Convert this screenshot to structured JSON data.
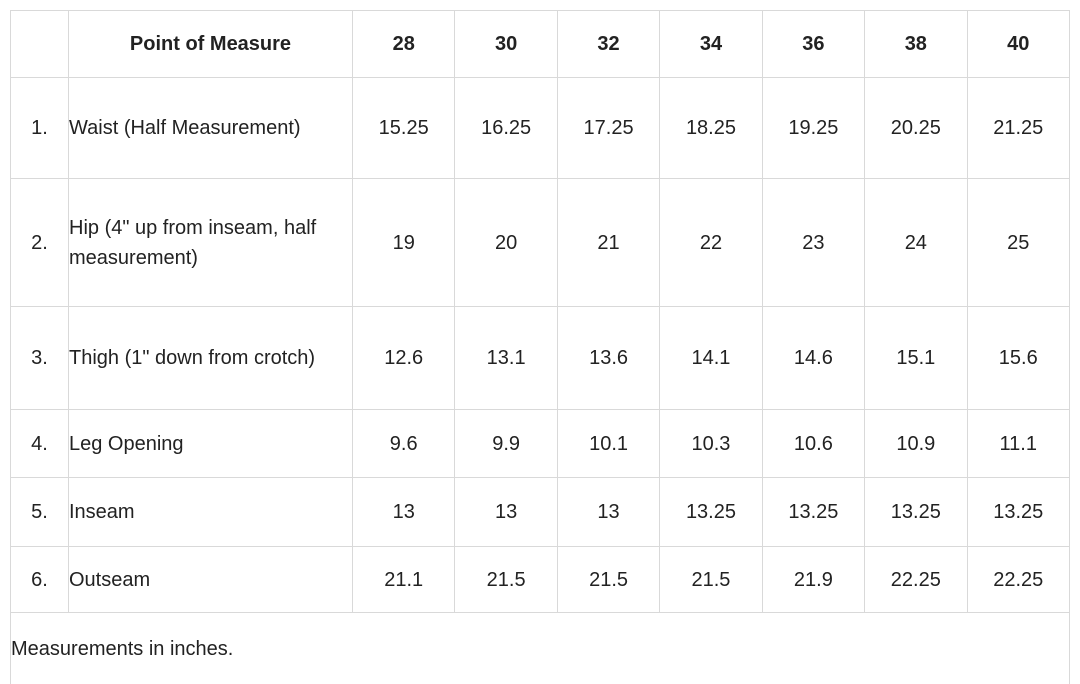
{
  "chart_data": {
    "type": "table",
    "header": {
      "label_column": "Point of Measure",
      "sizes": [
        "28",
        "30",
        "32",
        "34",
        "36",
        "38",
        "40"
      ]
    },
    "rows": [
      {
        "num": "1.",
        "label": "Waist (Half Measurement)",
        "values": [
          "15.25",
          "16.25",
          "17.25",
          "18.25",
          "19.25",
          "20.25",
          "21.25"
        ]
      },
      {
        "num": "2.",
        "label": "Hip (4\" up from inseam, half measurement)",
        "values": [
          "19",
          "20",
          "21",
          "22",
          "23",
          "24",
          "25"
        ]
      },
      {
        "num": "3.",
        "label": "Thigh (1\" down from crotch)",
        "values": [
          "12.6",
          "13.1",
          "13.6",
          "14.1",
          "14.6",
          "15.1",
          "15.6"
        ]
      },
      {
        "num": "4.",
        "label": "Leg Opening",
        "values": [
          "9.6",
          "9.9",
          "10.1",
          "10.3",
          "10.6",
          "10.9",
          "11.1"
        ]
      },
      {
        "num": "5.",
        "label": "Inseam",
        "values": [
          "13",
          "13",
          "13",
          "13.25",
          "13.25",
          "13.25",
          "13.25"
        ]
      },
      {
        "num": "6.",
        "label": "Outseam",
        "values": [
          "21.1",
          "21.5",
          "21.5",
          "21.5",
          "21.9",
          "22.25",
          "22.25"
        ]
      }
    ],
    "footnote": "Measurements in inches.",
    "units": "inches"
  },
  "colors": {
    "background": "#ffffff",
    "border": "#d9d9d9",
    "text": "#222222"
  }
}
